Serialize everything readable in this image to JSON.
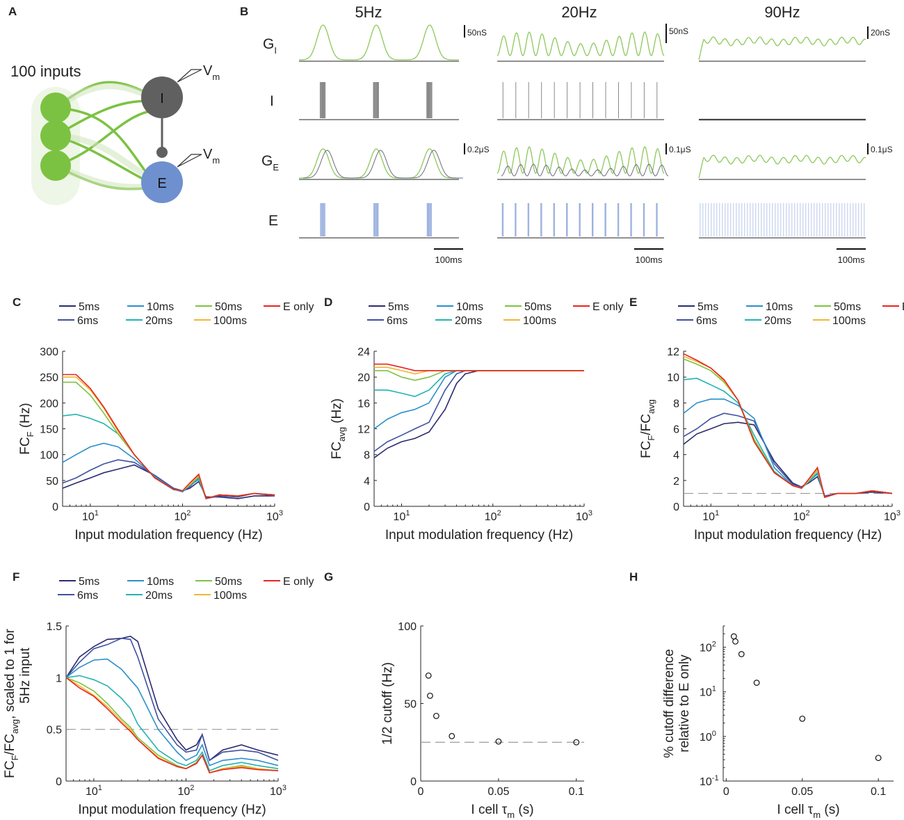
{
  "colors": {
    "5ms": "#2b2a6e",
    "6ms": "#3f4fa0",
    "10ms": "#2a8fc9",
    "20ms": "#21b3b0",
    "50ms": "#7cc242",
    "100ms": "#f2b630",
    "E only": "#e8241f",
    "green": "#8cc85a",
    "gray": "#555555",
    "blue": "#6f90cf",
    "dash": "#9a9a9a"
  },
  "panel_labels": [
    "A",
    "B",
    "C",
    "D",
    "E",
    "F",
    "G",
    "H"
  ],
  "panelA": {
    "inputs_label": "100 inputs",
    "cell_I": "I",
    "cell_E": "E",
    "vm_main": "V",
    "vm_sub": "m"
  },
  "panelB": {
    "columns": [
      "5Hz",
      "20Hz",
      "90Hz"
    ],
    "rows": [
      {
        "main": "G",
        "sub": "I"
      },
      {
        "main": "I",
        "sub": ""
      },
      {
        "main": "G",
        "sub": "E"
      },
      {
        "main": "E",
        "sub": ""
      }
    ],
    "scalebars_GI": [
      "50nS",
      "50nS",
      "20nS"
    ],
    "scalebars_GE": [
      "0.2μS",
      "0.1μS",
      "0.1μS"
    ],
    "time_scalebar": "100ms"
  },
  "legend": {
    "entries": [
      "5ms",
      "6ms",
      "10ms",
      "20ms",
      "50ms",
      "100ms",
      "E only"
    ]
  },
  "chart_data": [
    {
      "panel": "C",
      "type": "line",
      "xlabel": "Input modulation frequency (Hz)",
      "ylabel_main": "FC",
      "ylabel_sub": "F",
      "ylabel_tail": " (Hz)",
      "xscale": "log",
      "xlim": [
        5,
        1000
      ],
      "xticks": [
        10,
        100,
        1000
      ],
      "xtick_labels": [
        "10",
        "10",
        "10"
      ],
      "xtick_sup": [
        "1",
        "2",
        "3"
      ],
      "yscale": "linear",
      "ylim": [
        0,
        300
      ],
      "yticks": [
        0,
        50,
        100,
        150,
        200,
        250,
        300
      ],
      "ytick_labels": [
        "0",
        "50",
        "100",
        "150",
        "200",
        "250",
        "300"
      ],
      "x": [
        5,
        7,
        10,
        14,
        20,
        30,
        50,
        80,
        100,
        120,
        150,
        180,
        250,
        400,
        600,
        1000
      ],
      "series": [
        {
          "name": "5ms",
          "values": [
            35,
            45,
            55,
            65,
            72,
            80,
            60,
            35,
            30,
            35,
            48,
            18,
            18,
            15,
            20,
            20
          ]
        },
        {
          "name": "6ms",
          "values": [
            45,
            55,
            70,
            82,
            90,
            85,
            60,
            35,
            30,
            38,
            55,
            15,
            20,
            18,
            25,
            20
          ]
        },
        {
          "name": "10ms",
          "values": [
            85,
            100,
            115,
            122,
            115,
            92,
            58,
            33,
            28,
            40,
            52,
            15,
            22,
            20,
            25,
            22
          ]
        },
        {
          "name": "20ms",
          "values": [
            175,
            178,
            170,
            160,
            140,
            100,
            55,
            32,
            30,
            40,
            55,
            15,
            22,
            20,
            25,
            22
          ]
        },
        {
          "name": "50ms",
          "values": [
            240,
            240,
            215,
            180,
            140,
            100,
            55,
            33,
            30,
            42,
            58,
            15,
            22,
            20,
            25,
            22
          ]
        },
        {
          "name": "100ms",
          "values": [
            250,
            250,
            225,
            190,
            145,
            100,
            55,
            33,
            30,
            42,
            60,
            15,
            22,
            20,
            25,
            22
          ]
        },
        {
          "name": "E only",
          "values": [
            255,
            255,
            228,
            192,
            148,
            100,
            55,
            33,
            30,
            45,
            62,
            15,
            22,
            20,
            25,
            22
          ]
        }
      ]
    },
    {
      "panel": "D",
      "type": "line",
      "xlabel": "Input modulation frequency (Hz)",
      "ylabel_main": "FC",
      "ylabel_sub": "avg",
      "ylabel_tail": " (Hz)",
      "xscale": "log",
      "xlim": [
        5,
        1000
      ],
      "xticks": [
        10,
        100,
        1000
      ],
      "xtick_labels": [
        "10",
        "10",
        "10"
      ],
      "xtick_sup": [
        "1",
        "2",
        "3"
      ],
      "yscale": "linear",
      "ylim": [
        0,
        24
      ],
      "yticks": [
        0,
        4,
        8,
        12,
        16,
        20,
        24
      ],
      "ytick_labels": [
        "0",
        "4",
        "8",
        "12",
        "16",
        "20",
        "24"
      ],
      "x": [
        5,
        7,
        10,
        14,
        20,
        30,
        40,
        50,
        70,
        100,
        200,
        500,
        1000
      ],
      "series": [
        {
          "name": "5ms",
          "values": [
            7.5,
            9,
            10,
            10.5,
            11.5,
            15,
            19,
            20.5,
            21,
            21,
            21,
            21,
            21
          ]
        },
        {
          "name": "6ms",
          "values": [
            8.5,
            10,
            11,
            12,
            13,
            18,
            20.5,
            21,
            21,
            21,
            21,
            21,
            21
          ]
        },
        {
          "name": "10ms",
          "values": [
            12,
            13.5,
            14.5,
            15,
            16,
            20,
            21,
            21,
            21,
            21,
            21,
            21,
            21
          ]
        },
        {
          "name": "20ms",
          "values": [
            18,
            18,
            17.5,
            17,
            18,
            20.5,
            21,
            21,
            21,
            21,
            21,
            21,
            21
          ]
        },
        {
          "name": "50ms",
          "values": [
            21,
            21,
            20,
            19.5,
            20,
            21,
            21,
            21,
            21,
            21,
            21,
            21,
            21
          ]
        },
        {
          "name": "100ms",
          "values": [
            21.5,
            21.5,
            21,
            20.5,
            21,
            21,
            21,
            21,
            21,
            21,
            21,
            21,
            21
          ]
        },
        {
          "name": "E only",
          "values": [
            22,
            22,
            21.5,
            21,
            21,
            21,
            21,
            21,
            21,
            21,
            21,
            21,
            21
          ]
        }
      ]
    },
    {
      "panel": "E",
      "type": "line",
      "xlabel": "Input modulation frequency (Hz)",
      "ylabel_main": "FC",
      "ylabel_sub": "F",
      "ylabel_tail": "/FC",
      "ylabel_sub2": "avg",
      "xscale": "log",
      "xlim": [
        5,
        1000
      ],
      "xticks": [
        10,
        100,
        1000
      ],
      "xtick_labels": [
        "10",
        "10",
        "10"
      ],
      "xtick_sup": [
        "1",
        "2",
        "3"
      ],
      "yscale": "linear",
      "ylim": [
        0,
        12
      ],
      "yticks": [
        0,
        2,
        4,
        6,
        8,
        10,
        12
      ],
      "ytick_labels": [
        "0",
        "2",
        "4",
        "6",
        "8",
        "10",
        "12"
      ],
      "hline": 1,
      "x": [
        5,
        7,
        10,
        14,
        20,
        30,
        50,
        80,
        100,
        120,
        150,
        180,
        250,
        400,
        600,
        1000
      ],
      "series": [
        {
          "name": "5ms",
          "values": [
            4.8,
            5.6,
            6.0,
            6.4,
            6.5,
            6.3,
            3.5,
            1.8,
            1.5,
            1.8,
            2.3,
            0.8,
            1.0,
            1.0,
            1.1,
            1.0
          ]
        },
        {
          "name": "6ms",
          "values": [
            5.4,
            6.0,
            6.8,
            7.2,
            7.0,
            6.6,
            3.3,
            1.7,
            1.5,
            1.9,
            2.6,
            0.8,
            1.0,
            1.0,
            1.2,
            1.0
          ]
        },
        {
          "name": "10ms",
          "values": [
            7.2,
            8.0,
            8.3,
            8.3,
            7.8,
            6.8,
            3.0,
            1.6,
            1.4,
            1.9,
            2.5,
            0.7,
            1.0,
            1.0,
            1.2,
            1.0
          ]
        },
        {
          "name": "20ms",
          "values": [
            9.8,
            9.9,
            9.4,
            8.9,
            8.0,
            5.5,
            2.7,
            1.6,
            1.4,
            1.9,
            2.6,
            0.7,
            1.0,
            1.0,
            1.2,
            1.0
          ]
        },
        {
          "name": "50ms",
          "values": [
            11.4,
            11.0,
            10.5,
            9.6,
            8.2,
            5.2,
            2.6,
            1.6,
            1.4,
            2.0,
            2.8,
            0.7,
            1.0,
            1.0,
            1.2,
            1.0
          ]
        },
        {
          "name": "100ms",
          "values": [
            11.6,
            11.2,
            10.7,
            9.7,
            8.2,
            5.0,
            2.6,
            1.6,
            1.4,
            2.0,
            2.9,
            0.7,
            1.0,
            1.0,
            1.2,
            1.0
          ]
        },
        {
          "name": "E only",
          "values": [
            11.8,
            11.3,
            10.7,
            9.8,
            8.2,
            5.0,
            2.6,
            1.6,
            1.4,
            2.1,
            3.0,
            0.7,
            1.0,
            1.0,
            1.2,
            1.0
          ]
        }
      ]
    },
    {
      "panel": "F",
      "type": "line",
      "xlabel": "Input modulation frequency (Hz)",
      "ylabel_lines": [
        "FC",
        "F",
        "/FC",
        "avg",
        ", scaled to 1 for",
        "5Hz input"
      ],
      "xscale": "log",
      "xlim": [
        5,
        1000
      ],
      "xticks": [
        10,
        100,
        1000
      ],
      "xtick_labels": [
        "10",
        "10",
        "10"
      ],
      "xtick_sup": [
        "1",
        "2",
        "3"
      ],
      "yscale": "linear",
      "ylim": [
        0,
        1.5
      ],
      "yticks": [
        0,
        0.5,
        1,
        1.5
      ],
      "ytick_labels": [
        "0",
        "0.5",
        "1",
        "1.5"
      ],
      "hline": 0.5,
      "x": [
        5,
        7,
        10,
        14,
        20,
        25,
        30,
        50,
        80,
        100,
        130,
        150,
        180,
        250,
        400,
        600,
        1000
      ],
      "series": [
        {
          "name": "5ms",
          "values": [
            1.0,
            1.2,
            1.3,
            1.37,
            1.38,
            1.4,
            1.35,
            0.7,
            0.4,
            0.3,
            0.35,
            0.45,
            0.2,
            0.3,
            0.35,
            0.3,
            0.25
          ]
        },
        {
          "name": "6ms",
          "values": [
            1.0,
            1.15,
            1.28,
            1.32,
            1.38,
            1.37,
            1.2,
            0.6,
            0.35,
            0.28,
            0.3,
            0.45,
            0.2,
            0.28,
            0.3,
            0.28,
            0.2
          ]
        },
        {
          "name": "10ms",
          "values": [
            1.0,
            1.1,
            1.17,
            1.18,
            1.08,
            0.98,
            0.9,
            0.5,
            0.28,
            0.2,
            0.25,
            0.35,
            0.15,
            0.2,
            0.22,
            0.2,
            0.15
          ]
        },
        {
          "name": "20ms",
          "values": [
            1.0,
            1.02,
            0.98,
            0.92,
            0.8,
            0.7,
            0.55,
            0.3,
            0.18,
            0.15,
            0.2,
            0.28,
            0.1,
            0.15,
            0.18,
            0.15,
            0.12
          ]
        },
        {
          "name": "50ms",
          "values": [
            1.0,
            0.95,
            0.87,
            0.75,
            0.6,
            0.52,
            0.42,
            0.25,
            0.15,
            0.12,
            0.18,
            0.25,
            0.08,
            0.12,
            0.15,
            0.12,
            0.1
          ]
        },
        {
          "name": "100ms",
          "values": [
            1.0,
            0.92,
            0.83,
            0.72,
            0.58,
            0.5,
            0.4,
            0.23,
            0.14,
            0.12,
            0.17,
            0.25,
            0.08,
            0.12,
            0.14,
            0.12,
            0.1
          ]
        },
        {
          "name": "E only",
          "values": [
            1.0,
            0.9,
            0.82,
            0.7,
            0.56,
            0.48,
            0.4,
            0.22,
            0.14,
            0.12,
            0.17,
            0.25,
            0.08,
            0.11,
            0.13,
            0.11,
            0.1
          ]
        }
      ]
    },
    {
      "panel": "G",
      "type": "scatter",
      "xlabel_main": "I cell τ",
      "xlabel_sub": "m",
      "xlabel_tail": " (s)",
      "ylabel": "1/2 cutoff (Hz)",
      "xlim": [
        0,
        0.105
      ],
      "xticks": [
        0,
        0.05,
        0.1
      ],
      "xtick_labels": [
        "0",
        "0.05",
        "0.1"
      ],
      "ylim": [
        0,
        100
      ],
      "yticks": [
        0,
        50,
        100
      ],
      "ytick_labels": [
        "0",
        "50",
        "100"
      ],
      "hline": 25,
      "x": [
        0.005,
        0.006,
        0.01,
        0.02,
        0.05,
        0.1
      ],
      "y": [
        68,
        55,
        42,
        29,
        25.5,
        25
      ]
    },
    {
      "panel": "H",
      "type": "scatter",
      "xlabel_main": "I cell τ",
      "xlabel_sub": "m",
      "xlabel_tail": " (s)",
      "ylabel_lines": [
        "% cutoff difference",
        "relative to E only"
      ],
      "xlim": [
        -0.002,
        0.11
      ],
      "xticks": [
        0,
        0.05,
        0.1
      ],
      "xtick_labels": [
        "0",
        "0.05",
        "0.1"
      ],
      "yscale": "log",
      "ylim": [
        0.1,
        300
      ],
      "yticks": [
        0.1,
        1,
        10,
        100
      ],
      "ytick_labels": [
        "10",
        "10",
        "10",
        "10"
      ],
      "ytick_sup": [
        "-1",
        "0",
        "1",
        "2"
      ],
      "x": [
        0.005,
        0.006,
        0.01,
        0.02,
        0.05,
        0.1
      ],
      "y": [
        175,
        135,
        70,
        16,
        2.5,
        0.33
      ]
    }
  ]
}
